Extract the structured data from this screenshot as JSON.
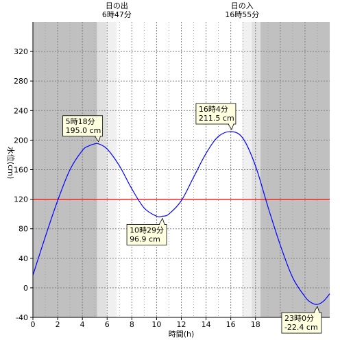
{
  "chart_data": {
    "type": "line",
    "xlabel": "時間(h)",
    "ylabel": "水位(cm)",
    "xlim": [
      0,
      24
    ],
    "ylim": [
      -40,
      360
    ],
    "x_ticks": [
      0,
      2,
      4,
      6,
      8,
      10,
      12,
      14,
      16,
      18
    ],
    "y_ticks": [
      -40,
      0,
      40,
      80,
      120,
      160,
      200,
      240,
      280,
      320
    ],
    "grid": true,
    "reference_line": {
      "value": 120,
      "color": "#ff0000"
    },
    "line_color": "#0000ff",
    "series": [
      {
        "x": [
          0,
          1,
          2,
          3,
          4,
          4.5,
          5,
          5.3,
          6,
          7,
          8,
          9,
          10,
          10.5,
          11,
          12,
          13,
          14,
          15,
          16.07,
          17,
          18,
          19,
          20,
          21,
          22,
          22.5,
          23,
          23.5,
          24
        ],
        "values": [
          17,
          69,
          118,
          160,
          186,
          192,
          195,
          195,
          188,
          165,
          134,
          108,
          97,
          97,
          100,
          118,
          150,
          182,
          205,
          211.5,
          202,
          165,
          110,
          58,
          14,
          -12,
          -20,
          -22.4,
          -18,
          -8
        ]
      }
    ],
    "callouts": [
      {
        "time": "5時18分",
        "value": "195.0 cm",
        "x": 5.3,
        "y": 195
      },
      {
        "time": "10時29分",
        "value": "96.9 cm",
        "x": 10.48,
        "y": 96.9
      },
      {
        "time": "16時4分",
        "value": "211.5 cm",
        "x": 16.07,
        "y": 211.5
      },
      {
        "time": "23時0分",
        "value": "-22.4 cm",
        "x": 23.0,
        "y": -22.4
      }
    ],
    "sunrise": {
      "label": "日の出",
      "time": "6時47分",
      "hour": 6.783
    },
    "sunset": {
      "label": "日の入",
      "time": "16時55分",
      "hour": 16.917
    },
    "twilight_hours": {
      "dawn_start": 5.2,
      "dawn_mid": 5.95,
      "dusk_mid": 17.7,
      "dusk_end": 18.4
    },
    "colors": {
      "night": "#c0c0c0",
      "twilight": "#e0e0e0",
      "day": "#ffffff",
      "callout_bg": "#ffffe0"
    }
  }
}
